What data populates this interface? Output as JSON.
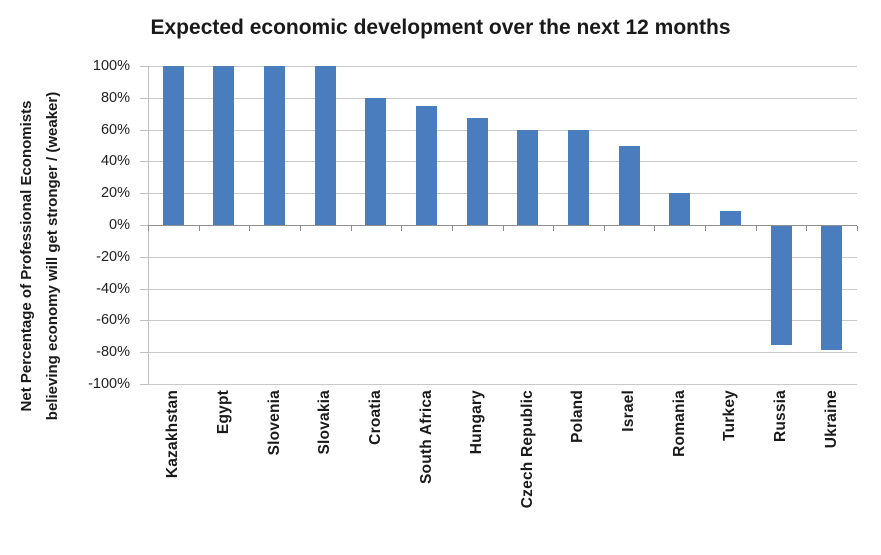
{
  "chart_data": {
    "type": "bar",
    "title": "Expected economic development over the next 12 months",
    "ylabel_line1": "Net Percentage of Professional Economists",
    "ylabel_line2": "believing economy will get stronger / (weaker)",
    "categories": [
      "Kazakhstan",
      "Egypt",
      "Slovenia",
      "Slovakia",
      "Croatia",
      "South Africa",
      "Hungary",
      "Czech Republic",
      "Poland",
      "Israel",
      "Romania",
      "Turkey",
      "Russia",
      "Ukraine"
    ],
    "values": [
      100,
      100,
      100,
      100,
      80,
      75,
      67,
      60,
      60,
      50,
      20,
      9,
      -75,
      -78
    ],
    "xlabel": "",
    "ylabel": "Net Percentage of Professional Economists believing economy will get stronger / (weaker)",
    "ylim": [
      -100,
      100
    ],
    "ytick_values": [
      100,
      80,
      60,
      40,
      20,
      0,
      -20,
      -40,
      -60,
      -80,
      -100
    ],
    "ytick_labels": [
      "100%",
      "80%",
      "60%",
      "40%",
      "20%",
      "0%",
      "-20%",
      "-40%",
      "-60%",
      "-80%",
      "-100%"
    ],
    "grid": "horizontal",
    "legend": "none",
    "colors": {
      "bar": "#4a7dbe",
      "gridline": "#c9c9c9",
      "zero_axis": "#8e8e8e",
      "value_axis": "#bfbfbf",
      "text": "#1a1a1a"
    }
  }
}
